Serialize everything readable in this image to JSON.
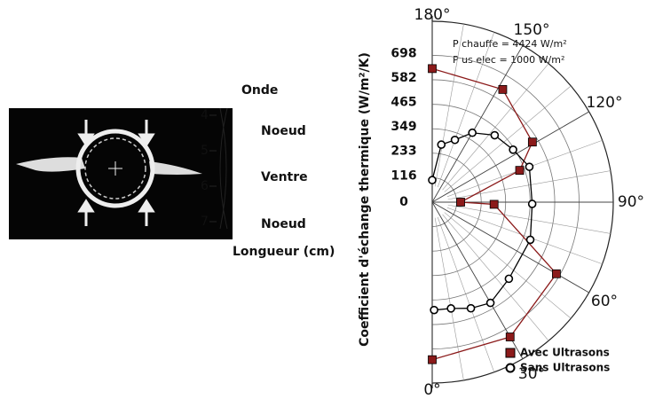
{
  "chart_data": {
    "type": "polar-scatter",
    "y_label": "Coefficient d'échange thermique (W/m²/K)",
    "annotations": [
      "P chauffe = 4424 W/m²",
      "P us elec = 1000 W/m²"
    ],
    "rlim": [
      0,
      860
    ],
    "rticks": [
      0,
      116,
      233,
      349,
      465,
      582,
      698
    ],
    "thetaticks": [
      {
        "value": 0,
        "label": "0°"
      },
      {
        "value": 30,
        "label": "30°"
      },
      {
        "value": 60,
        "label": "60°"
      },
      {
        "value": 90,
        "label": "90°"
      },
      {
        "value": 120,
        "label": "120°"
      },
      {
        "value": 150,
        "label": "150°"
      },
      {
        "value": 180,
        "label": "180°"
      }
    ],
    "series": [
      {
        "name": "Avec Ultrasons",
        "color": "#8b1a1a",
        "marker": "square",
        "theta": [
          180,
          148,
          121,
          110,
          90,
          88,
          60,
          30,
          0
        ],
        "values": [
          635,
          632,
          555,
          442,
          135,
          294,
          681,
          740,
          749
        ]
      },
      {
        "name": "Sans Ultrasons",
        "color": "#000000",
        "marker": "circle",
        "theta": [
          180,
          171,
          160,
          150,
          137,
          123,
          110,
          89,
          69,
          45,
          30,
          20,
          10,
          1
        ],
        "values": [
          105,
          277,
          315,
          381,
          435,
          458,
          491,
          475,
          499,
          515,
          553,
          537,
          513,
          513
        ]
      }
    ]
  },
  "diagram": {
    "wave_label": "Onde",
    "scale_ticks": [
      4,
      5,
      6,
      7
    ],
    "zones": [
      "Noeud",
      "Ventre",
      "Noeud"
    ],
    "axis_label": "Longueur (cm)"
  }
}
